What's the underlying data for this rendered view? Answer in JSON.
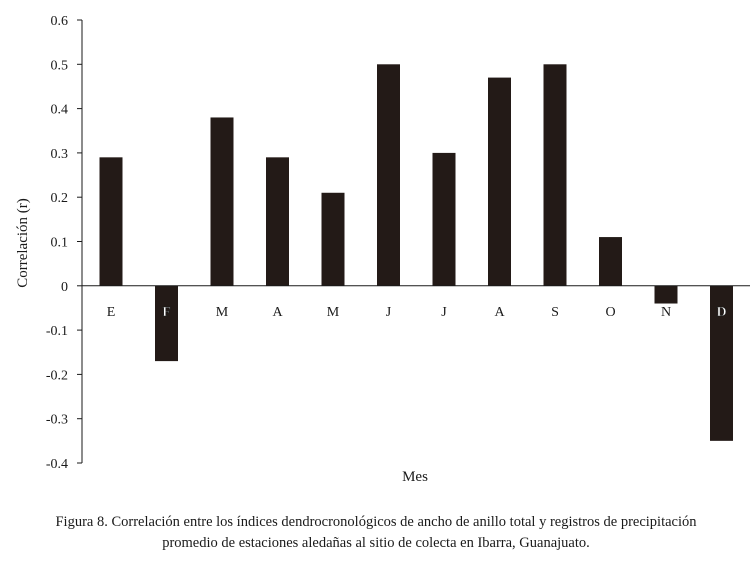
{
  "chart_data": {
    "type": "bar",
    "categories": [
      "E",
      "F",
      "M",
      "A",
      "M",
      "J",
      "J",
      "A",
      "S",
      "O",
      "N",
      "D"
    ],
    "bold_categories": [
      1,
      11
    ],
    "values": [
      0.29,
      -0.17,
      0.38,
      0.29,
      0.21,
      0.5,
      0.3,
      0.47,
      0.5,
      0.11,
      -0.04,
      -0.35
    ],
    "xlabel": "Mes",
    "ylabel": "Correlación (r)",
    "ylim": [
      -0.4,
      0.6
    ],
    "yticks": [
      0.6,
      0.5,
      0.4,
      0.3,
      0.2,
      0.1,
      0,
      -0.1,
      -0.2,
      -0.3,
      -0.4
    ],
    "ytick_labels": [
      "0.6",
      "0.5",
      "0.4",
      "0.3",
      "0.2",
      "0.1",
      "0",
      "-0.1",
      "-0.2",
      "-0.3",
      "-0.4"
    ],
    "grid": false,
    "bar_color": "#231a17"
  },
  "caption": {
    "line1": "Figura 8. Correlación entre los índices dendrocronológicos de ancho de anillo total y registros de precipitación",
    "line2": "promedio de estaciones aledañas al sitio de colecta en Ibarra, Guanajuato."
  }
}
